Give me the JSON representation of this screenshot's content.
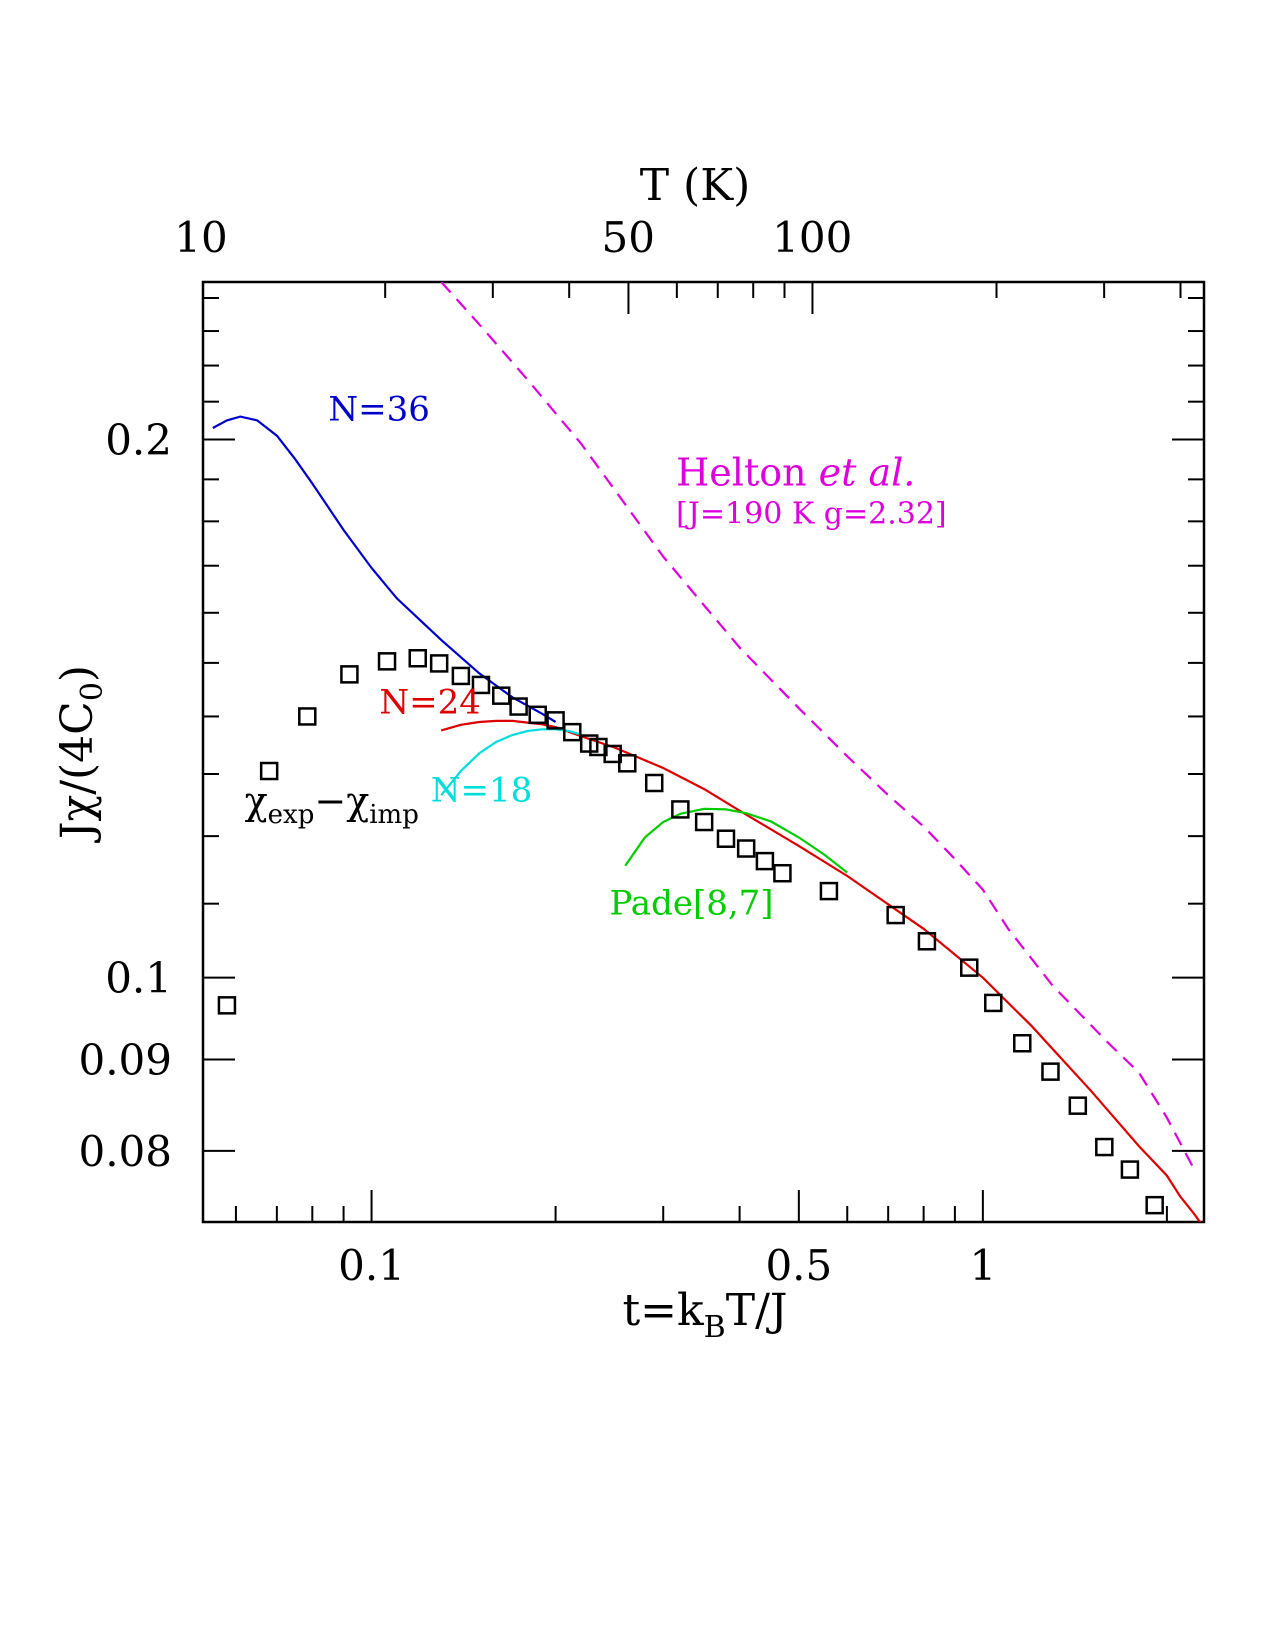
{
  "chart_data": {
    "type": "line",
    "x_scale": "log",
    "y_scale": "log",
    "xlim": [
      0.053,
      2.3
    ],
    "ylim": [
      0.073,
      0.245
    ],
    "xlabel": {
      "main": "t=k",
      "sub": "B",
      "tail": "T/J"
    },
    "ylabel": {
      "main": "Jχ/(4C",
      "sub": "0",
      "tail": ")"
    },
    "top_axis": {
      "label": "T  (K)",
      "ticks": [
        {
          "x": 0.0526,
          "label": "10"
        },
        {
          "x": 0.263,
          "label": "50"
        },
        {
          "x": 0.526,
          "label": "100"
        }
      ]
    },
    "x_ticks": [
      {
        "value": 0.1,
        "label": "0.1"
      },
      {
        "value": 0.5,
        "label": "0.5"
      },
      {
        "value": 1,
        "label": "1"
      }
    ],
    "y_ticks": [
      {
        "value": 0.2,
        "label": "0.2"
      },
      {
        "value": 0.1,
        "label": "0.1"
      },
      {
        "value": 0.09,
        "label": "0.09"
      },
      {
        "value": 0.08,
        "label": "0.08"
      }
    ],
    "series": [
      {
        "name": "N=36",
        "color": "#0000cc",
        "style": "solid",
        "x": [
          0.055,
          0.058,
          0.061,
          0.065,
          0.07,
          0.075,
          0.08,
          0.09,
          0.1,
          0.11,
          0.12,
          0.13,
          0.15,
          0.17,
          0.19,
          0.2
        ],
        "y": [
          0.203,
          0.205,
          0.206,
          0.205,
          0.201,
          0.195,
          0.189,
          0.178,
          0.1695,
          0.163,
          0.1585,
          0.1545,
          0.148,
          0.1435,
          0.1405,
          0.139
        ]
      },
      {
        "name": "N=24",
        "color": "#dd0000",
        "style": "solid",
        "x": [
          0.13,
          0.14,
          0.15,
          0.16,
          0.17,
          0.18,
          0.19,
          0.2,
          0.22,
          0.25,
          0.3,
          0.35,
          0.4,
          0.5,
          0.6,
          0.8,
          1.0,
          1.2,
          1.5,
          1.8,
          2.0,
          2.1,
          2.2,
          2.3
        ],
        "y": [
          0.1375,
          0.1385,
          0.139,
          0.1392,
          0.1392,
          0.1389,
          0.1386,
          0.1381,
          0.1365,
          0.1345,
          0.131,
          0.1275,
          0.124,
          0.1185,
          0.114,
          0.1065,
          0.1,
          0.094,
          0.0865,
          0.0805,
          0.0775,
          0.0755,
          0.074,
          0.0725
        ]
      },
      {
        "name": "N=18",
        "color": "#00dddd",
        "style": "solid",
        "x": [
          0.13,
          0.14,
          0.15,
          0.16,
          0.17,
          0.18,
          0.19,
          0.2,
          0.21,
          0.22
        ],
        "y": [
          0.1265,
          0.1305,
          0.1335,
          0.1355,
          0.1367,
          0.1374,
          0.1377,
          0.1377,
          0.1374,
          0.1368
        ]
      },
      {
        "name": "Pade[8,7]",
        "color": "#00cc00",
        "style": "solid",
        "x": [
          0.26,
          0.28,
          0.3,
          0.32,
          0.35,
          0.38,
          0.41,
          0.45,
          0.5,
          0.55,
          0.6
        ],
        "y": [
          0.1155,
          0.1198,
          0.1222,
          0.1235,
          0.1243,
          0.1242,
          0.1236,
          0.1223,
          0.1198,
          0.1172,
          0.1145
        ]
      },
      {
        "name": "Helton et al. [J=190 K   g=2.32]",
        "color": "#dd00dd",
        "style": "dashed",
        "x": [
          0.13,
          0.15,
          0.18,
          0.22,
          0.26,
          0.3,
          0.35,
          0.4,
          0.5,
          0.6,
          0.7,
          0.8,
          0.9,
          1.0,
          1.1,
          1.3,
          1.6,
          1.8,
          2.0,
          2.2
        ],
        "y": [
          0.245,
          0.232,
          0.216,
          0.199,
          0.184,
          0.172,
          0.1615,
          0.153,
          0.1415,
          0.133,
          0.1265,
          0.1215,
          0.1165,
          0.112,
          0.1065,
          0.099,
          0.092,
          0.0885,
          0.0835,
          0.0785
        ]
      },
      {
        "name": "χexp−χimp",
        "color": "#000000",
        "style": "markers",
        "x": [
          0.058,
          0.068,
          0.0785,
          0.092,
          0.106,
          0.119,
          0.129,
          0.14,
          0.151,
          0.163,
          0.174,
          0.187,
          0.2,
          0.213,
          0.227,
          0.235,
          0.248,
          0.262,
          0.29,
          0.32,
          0.35,
          0.38,
          0.41,
          0.44,
          0.47,
          0.56,
          0.72,
          0.81,
          0.95,
          1.04,
          1.16,
          1.29,
          1.43,
          1.58,
          1.74,
          1.91,
          2.07
        ],
        "y": [
          0.0965,
          0.1305,
          0.14,
          0.1478,
          0.1503,
          0.1509,
          0.1499,
          0.1475,
          0.1458,
          0.1438,
          0.1418,
          0.1403,
          0.1393,
          0.1372,
          0.1352,
          0.1346,
          0.1334,
          0.1318,
          0.1285,
          0.1242,
          0.1222,
          0.1196,
          0.1181,
          0.1162,
          0.1144,
          0.1118,
          0.1084,
          0.1048,
          0.1013,
          0.0968,
          0.0919,
          0.0886,
          0.0848,
          0.0804,
          0.0781,
          0.0746,
          0.0718
        ]
      }
    ],
    "annotations": [
      {
        "text": "N=36",
        "color": "#0000cc",
        "x": 0.085,
        "y": 0.205
      },
      {
        "text": "N=24",
        "color": "#dd0000",
        "x": 0.103,
        "y": 0.1405
      },
      {
        "text": "N=18",
        "color": "#00dddd",
        "x": 0.125,
        "y": 0.1255
      },
      {
        "text": "Pade[8,7]",
        "color": "#00cc00",
        "x": 0.245,
        "y": 0.1085
      },
      {
        "text": "[J=190 K   g=2.32]",
        "color": "#dd00dd",
        "x": 0.315,
        "y": 0.1795,
        "size": 30
      }
    ],
    "rich_labels": {
      "helton": {
        "pre": "Helton ",
        "italic": "et al.",
        "color": "#dd00dd",
        "x": 0.315,
        "y": 0.1885
      },
      "chi": {
        "a": "χ",
        "a_sub": "exp",
        "minus": "−",
        "b": "χ",
        "b_sub": "imp",
        "x": 0.062,
        "y": 0.1235
      }
    }
  }
}
